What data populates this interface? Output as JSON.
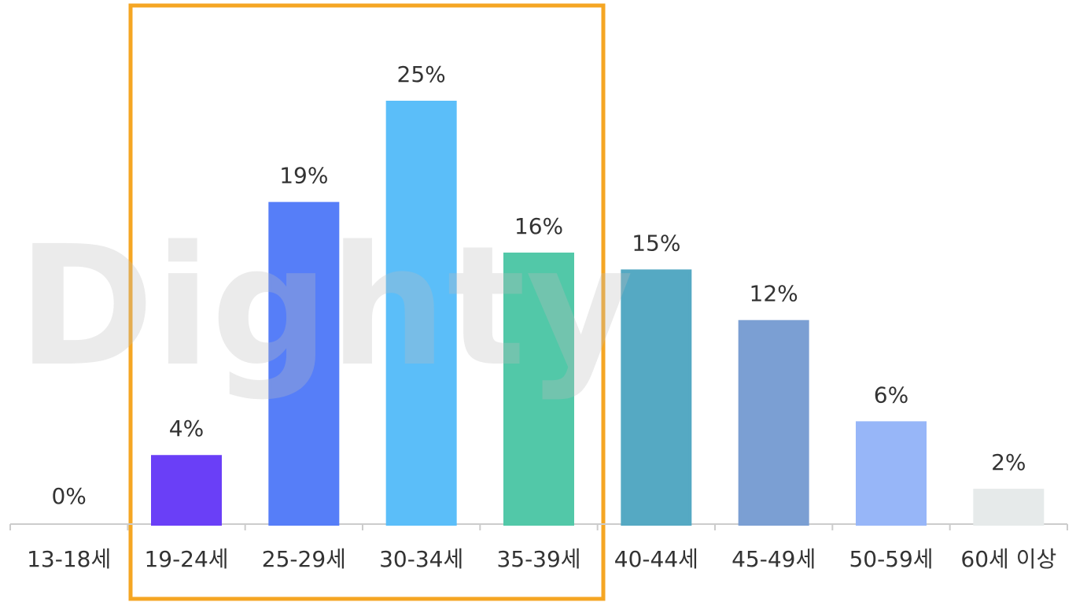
{
  "chart_data": {
    "type": "bar",
    "watermark": "Dighty",
    "categories": [
      "13-18세",
      "19-24세",
      "25-29세",
      "30-34세",
      "35-39세",
      "40-44세",
      "45-49세",
      "50-59세",
      "60세 이상"
    ],
    "values": [
      0,
      4,
      19,
      25,
      16,
      15,
      12,
      6,
      2
    ],
    "value_labels": [
      "0%",
      "4%",
      "19%",
      "25%",
      "16%",
      "15%",
      "12%",
      "6%",
      "2%"
    ],
    "colors": [
      "#4a4a55",
      "#6a3ff7",
      "#567ef8",
      "#5bbef9",
      "#52c8a8",
      "#55a9c3",
      "#7b9fd3",
      "#97b6f8",
      "#e6eaea"
    ],
    "ylim": [
      0,
      25
    ]
  }
}
